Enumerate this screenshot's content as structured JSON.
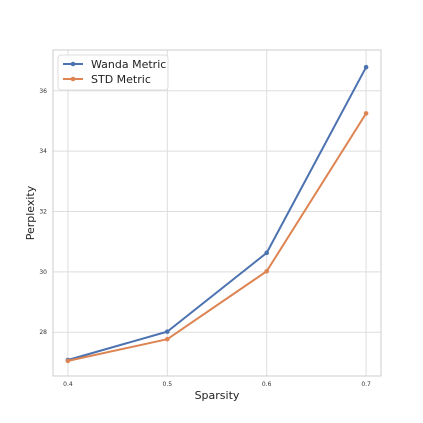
{
  "chart_data": {
    "type": "line",
    "title": "",
    "xlabel": "Sparsity",
    "ylabel": "Perplexity",
    "x": [
      0.4,
      0.5,
      0.6,
      0.7
    ],
    "x_tick_labels": [
      "0.4",
      "0.5",
      "0.6",
      "0.7"
    ],
    "xlim": [
      0.385,
      0.715
    ],
    "ylim": [
      26.55,
      37.35
    ],
    "y_ticks": [
      28,
      30,
      32,
      34,
      36
    ],
    "y_tick_labels": [
      "28",
      "30",
      "32",
      "34",
      "36"
    ],
    "grid": true,
    "legend_position": "top-left",
    "series": [
      {
        "name": "Wanda Metric",
        "color": "#4c72b0",
        "values": [
          27.08,
          28.02,
          30.63,
          36.78
        ]
      },
      {
        "name": "STD Metric",
        "color": "#dd8452",
        "values": [
          27.05,
          27.77,
          30.02,
          35.25
        ]
      }
    ]
  }
}
